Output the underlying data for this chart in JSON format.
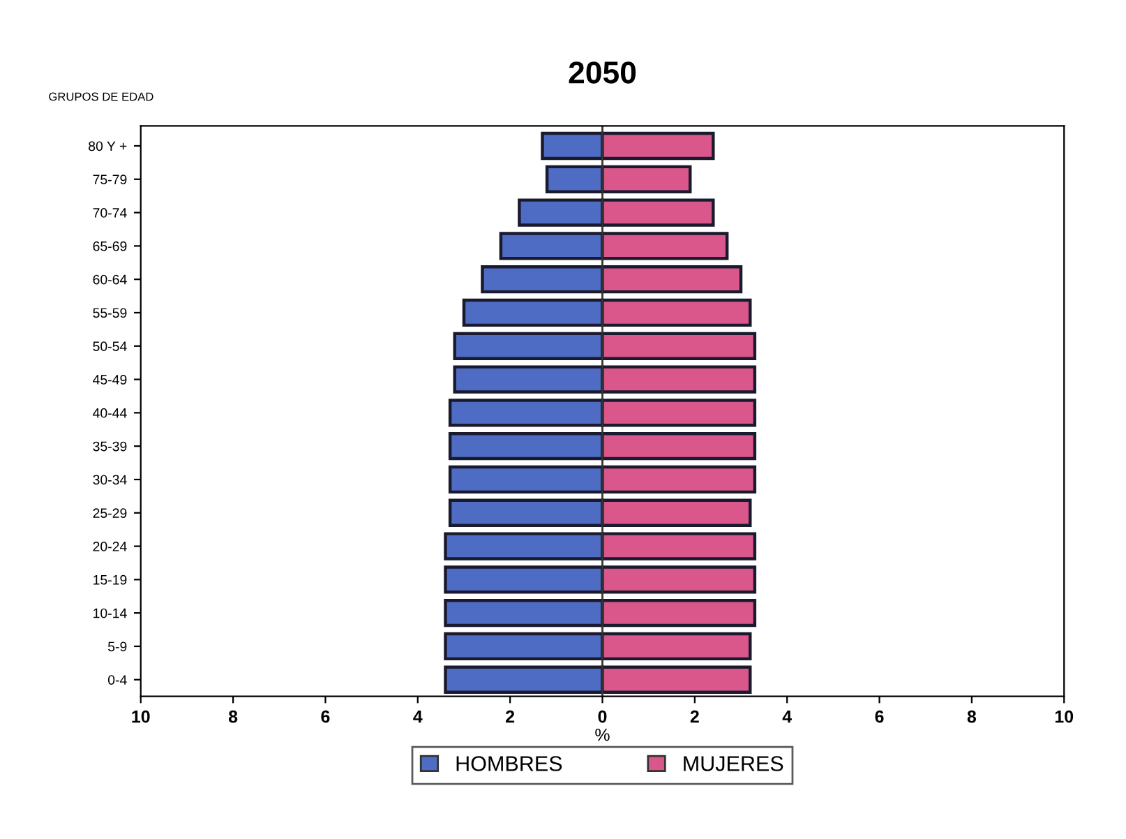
{
  "chart_data": {
    "type": "bar",
    "orientation": "horizontal",
    "stacked": true,
    "title": "2050",
    "ylabel": "GRUPOS DE EDAD",
    "xlabel": "%",
    "categories": [
      "80 Y +",
      "75-79",
      "70-74",
      "65-69",
      "60-64",
      "55-59",
      "50-54",
      "45-49",
      "40-44",
      "35-39",
      "30-34",
      "25-29",
      "20-24",
      "15-19",
      "10-14",
      "5-9",
      "0-4"
    ],
    "series": [
      {
        "name": "HOMBRES",
        "color": "#4f6cc4",
        "values": [
          -1.3,
          -1.2,
          -1.8,
          -2.2,
          -2.6,
          -3.0,
          -3.2,
          -3.2,
          -3.3,
          -3.3,
          -3.3,
          -3.3,
          -3.4,
          -3.4,
          -3.4,
          -3.4,
          -3.4
        ]
      },
      {
        "name": "MUJERES",
        "color": "#d9578a",
        "values": [
          2.4,
          1.9,
          2.4,
          2.7,
          3.0,
          3.2,
          3.3,
          3.3,
          3.3,
          3.3,
          3.3,
          3.2,
          3.3,
          3.3,
          3.3,
          3.2,
          3.2
        ]
      }
    ],
    "xlim": [
      -10,
      10
    ],
    "xticks": [
      {
        "value": -10,
        "label": "10"
      },
      {
        "value": -8,
        "label": "8"
      },
      {
        "value": -6,
        "label": "6"
      },
      {
        "value": -4,
        "label": "4"
      },
      {
        "value": -2,
        "label": "2"
      },
      0,
      2,
      4,
      6,
      8,
      10
    ],
    "ref_lines": [
      {
        "axis": "x",
        "value": 0,
        "color": "#333333"
      }
    ],
    "grid": false,
    "legend": "bottom"
  }
}
